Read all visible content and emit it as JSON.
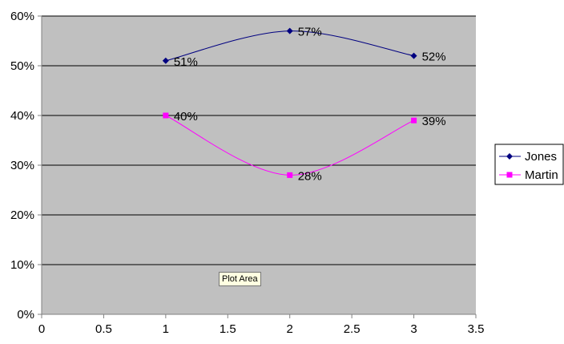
{
  "chart_data": {
    "type": "scatter",
    "title": "",
    "xlabel": "",
    "ylabel": "",
    "xlim": [
      0,
      3.5
    ],
    "ylim": [
      0,
      0.6
    ],
    "x_ticks": [
      0,
      0.5,
      1,
      1.5,
      2,
      2.5,
      3,
      3.5
    ],
    "x_tick_labels": [
      "0",
      "0.5",
      "1",
      "1.5",
      "2",
      "2.5",
      "3",
      "3.5"
    ],
    "y_ticks": [
      0,
      0.1,
      0.2,
      0.3,
      0.4,
      0.5,
      0.6
    ],
    "y_tick_labels": [
      "0%",
      "10%",
      "20%",
      "30%",
      "40%",
      "50%",
      "60%"
    ],
    "grid": "horizontal",
    "smoothed": true,
    "plot_background": "#c0c0c0",
    "legend_position": "right",
    "series": [
      {
        "name": "Jones",
        "color": "#000080",
        "marker": "diamond",
        "points": [
          {
            "x": 1,
            "y": 0.51,
            "label": "51%"
          },
          {
            "x": 2,
            "y": 0.57,
            "label": "57%"
          },
          {
            "x": 3,
            "y": 0.52,
            "label": "52%"
          }
        ]
      },
      {
        "name": "Martin",
        "color": "#ff00ff",
        "marker": "square",
        "points": [
          {
            "x": 1,
            "y": 0.4,
            "label": "40%"
          },
          {
            "x": 2,
            "y": 0.28,
            "label": "28%"
          },
          {
            "x": 3,
            "y": 0.39,
            "label": "39%"
          }
        ]
      }
    ]
  },
  "tooltip": {
    "text": "Plot Area"
  }
}
